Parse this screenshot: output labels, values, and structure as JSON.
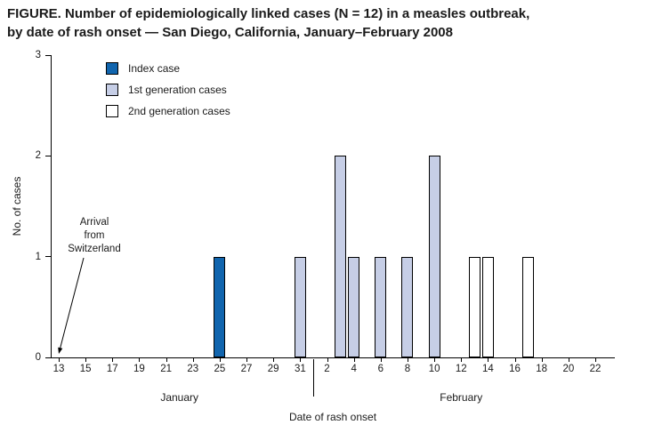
{
  "figure": {
    "title": "FIGURE. Number of epidemiologically linked cases (N = 12) in a measles outbreak,\nby date of rash onset — San Diego, California, January–February 2008"
  },
  "chart_data": {
    "type": "bar",
    "title": "FIGURE. Number of epidemiologically linked cases (N = 12) in a measles outbreak, by date of rash onset — San Diego, California, January–February 2008",
    "n_total": 12,
    "xlabel": "Date of rash onset",
    "ylabel": "No. of cases",
    "ylim": [
      0,
      3
    ],
    "yticks": [
      "0",
      "1",
      "2",
      "3"
    ],
    "grid": false,
    "legend_position": "top-left-inside",
    "ticks": [
      {
        "label": "13",
        "day": 0
      },
      {
        "label": "15",
        "day": 2
      },
      {
        "label": "17",
        "day": 4
      },
      {
        "label": "19",
        "day": 6
      },
      {
        "label": "21",
        "day": 8
      },
      {
        "label": "23",
        "day": 10
      },
      {
        "label": "25",
        "day": 12
      },
      {
        "label": "27",
        "day": 14
      },
      {
        "label": "29",
        "day": 16
      },
      {
        "label": "31",
        "day": 18
      },
      {
        "label": "2",
        "day": 20
      },
      {
        "label": "4",
        "day": 22
      },
      {
        "label": "6",
        "day": 24
      },
      {
        "label": "8",
        "day": 26
      },
      {
        "label": "10",
        "day": 28
      },
      {
        "label": "12",
        "day": 30
      },
      {
        "label": "14",
        "day": 32
      },
      {
        "label": "16",
        "day": 34
      },
      {
        "label": "18",
        "day": 36
      },
      {
        "label": "20",
        "day": 38
      },
      {
        "label": "22",
        "day": 40
      }
    ],
    "months": [
      {
        "label": "January",
        "center_day": 9
      },
      {
        "label": "February",
        "center_day": 30
      }
    ],
    "month_divider_day": 19,
    "series": [
      {
        "name": "Index case",
        "color": "#1165ae",
        "bars": [
          {
            "date": "January 25",
            "day": 12,
            "value": 1
          }
        ]
      },
      {
        "name": "1st generation cases",
        "color": "#c6cee6",
        "bars": [
          {
            "date": "January 31",
            "day": 18,
            "value": 1
          },
          {
            "date": "February 3",
            "day": 21,
            "value": 2
          },
          {
            "date": "February 4",
            "day": 22,
            "value": 1
          },
          {
            "date": "February 6",
            "day": 24,
            "value": 1
          },
          {
            "date": "February 8",
            "day": 26,
            "value": 1
          },
          {
            "date": "February 10",
            "day": 28,
            "value": 2
          }
        ]
      },
      {
        "name": "2nd generation cases",
        "color": "#ffffff",
        "bars": [
          {
            "date": "February 13",
            "day": 31,
            "value": 1
          },
          {
            "date": "February 14",
            "day": 32,
            "value": 1
          },
          {
            "date": "February 17",
            "day": 35,
            "value": 1
          }
        ]
      }
    ],
    "annotation": {
      "text": "Arrival\nfrom\nSwitzerland",
      "points_to": "January 13",
      "points_to_day": 0
    }
  },
  "colors": {
    "axis": "#000000",
    "bar_border": "#000000",
    "background": "#ffffff",
    "text": "#1a1a1a"
  }
}
